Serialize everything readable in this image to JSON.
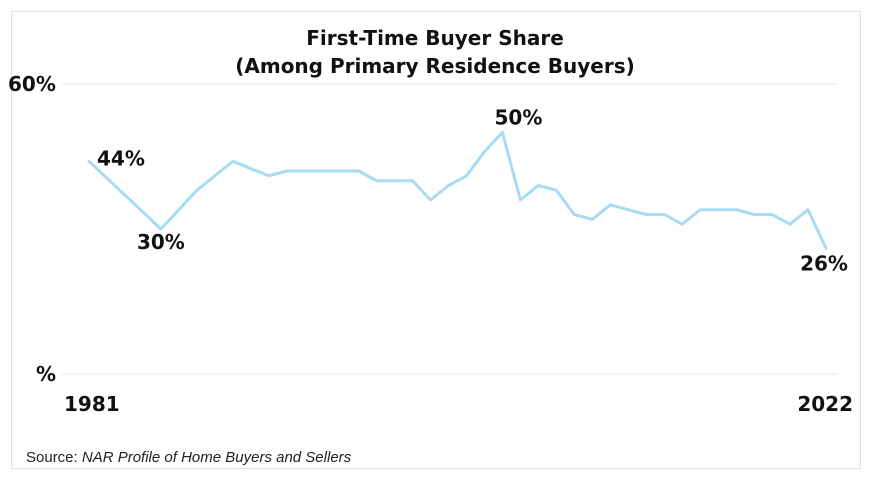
{
  "chart_data": {
    "type": "line",
    "title": "First-Time Buyer Share",
    "subtitle": "(Among Primary Residence Buyers)",
    "xlabel": "",
    "ylabel": "",
    "x_tick_labels": [
      "1981",
      "2022"
    ],
    "y_tick_labels": [
      "60%",
      "%"
    ],
    "ylim": [
      0,
      60
    ],
    "grid": true,
    "line_color": "#a8dcf3",
    "x": [
      1981,
      1985,
      1987,
      1989,
      1991,
      1992,
      1993,
      1994,
      1995,
      1996,
      1997,
      1998,
      1999,
      2000,
      2001,
      2002,
      2003,
      2004,
      2005,
      2006,
      2007,
      2008,
      2009,
      2010,
      2011,
      2012,
      2013,
      2014,
      2015,
      2016,
      2017,
      2018,
      2019,
      2020,
      2021,
      2022
    ],
    "values": [
      44,
      30,
      38,
      44,
      41,
      42,
      42,
      42,
      42,
      42,
      40,
      40,
      40,
      36,
      39,
      41,
      46,
      50,
      36,
      39,
      38,
      33,
      32,
      35,
      34,
      33,
      33,
      31,
      34,
      34,
      34,
      33,
      33,
      31,
      34,
      26
    ],
    "annotations": [
      {
        "text": "44%",
        "x": 1981,
        "y": 44
      },
      {
        "text": "30%",
        "x": 1985,
        "y": 30
      },
      {
        "text": "50%",
        "x": 2004,
        "y": 50
      },
      {
        "text": "26%",
        "x": 2022,
        "y": 26
      }
    ]
  },
  "source": {
    "prefix": "Source: ",
    "name": "NAR Profile of Home Buyers and Sellers"
  }
}
